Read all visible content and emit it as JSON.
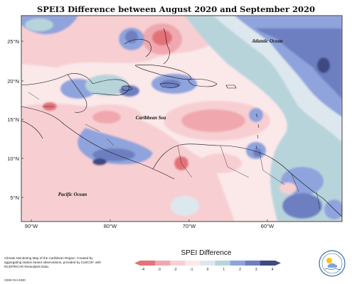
{
  "title": "SPEI3 Difference between August 2020 and September 2020",
  "map": {
    "lat_labels": [
      "25°N",
      "20°N",
      "15°N",
      "10°N",
      "5°N"
    ],
    "lon_labels": [
      "90°W",
      "80°W",
      "70°W",
      "60°W"
    ],
    "ocean_labels": {
      "atlantic": "Atlantic Ocean",
      "caribbean": "Caribbean Sea",
      "pacific": "Pacific Ocean"
    }
  },
  "legend": {
    "title": "SPEI Difference",
    "ticks": [
      "-4",
      "-3",
      "-2",
      "-1",
      "0",
      "1",
      "2",
      "3",
      "4"
    ],
    "colors": [
      "#e2727a",
      "#f0a8ae",
      "#f7cfd2",
      "#fbe8e9",
      "#dde8ee",
      "#b8d4db",
      "#8fa3dc",
      "#6d7fc0",
      "#3e4a80"
    ]
  },
  "credit": {
    "text": "Climate Monitoring Map of the Caribbean Region. Created by aggregating station based observations, provided by CariCOF, with NCEP/NCAR Reanalysis Data.",
    "date": "CIMH Oct 2020"
  },
  "logo": {
    "name": "CIMH logo"
  }
}
